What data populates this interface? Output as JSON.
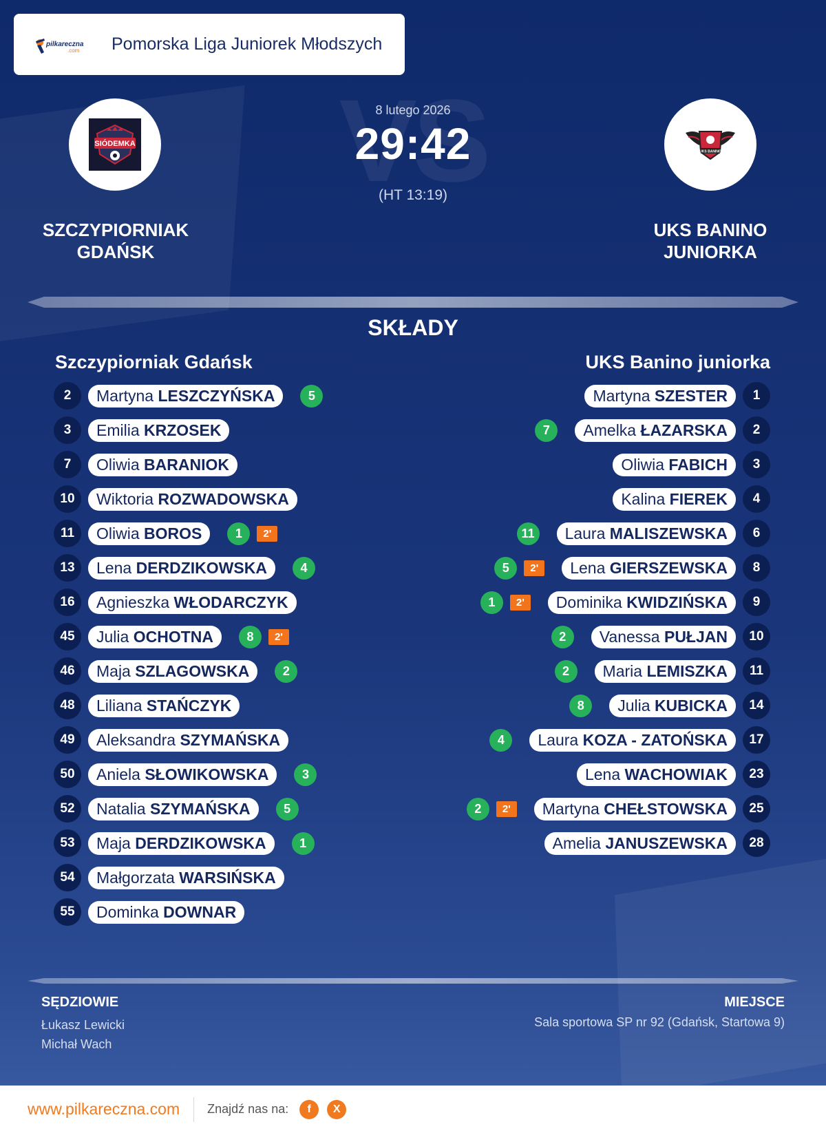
{
  "league": {
    "title": "Pomorska Liga Juniorek Młodszych",
    "logo_text": "pilkareczna",
    "logo_sub": ".com"
  },
  "match": {
    "date": "8 lutego 2026",
    "score": "29:42",
    "half_time": "(HT 13:19)",
    "watermark": "VS"
  },
  "home": {
    "name_line1": "SZCZYPIORNIAK",
    "name_line2": "GDAŃSK",
    "crest_text": "SIÓDEMKA",
    "header": "Szczypiorniak Gdańsk"
  },
  "away": {
    "name_line1": "UKS BANINO",
    "name_line2": "JUNIORKA",
    "crest_text": "UKS BANINO",
    "header": "UKS Banino juniorka"
  },
  "section_title": "SKŁADY",
  "home_players": [
    {
      "num": "2",
      "first": "Martyna",
      "last": "LESZCZYŃSKA",
      "goals": "5",
      "susp": ""
    },
    {
      "num": "3",
      "first": "Emilia",
      "last": "KRZOSEK",
      "goals": "",
      "susp": ""
    },
    {
      "num": "7",
      "first": "Oliwia",
      "last": "BARANIOK",
      "goals": "",
      "susp": ""
    },
    {
      "num": "10",
      "first": "Wiktoria",
      "last": "ROZWADOWSKA",
      "goals": "",
      "susp": ""
    },
    {
      "num": "11",
      "first": "Oliwia",
      "last": "BOROS",
      "goals": "1",
      "susp": "2'"
    },
    {
      "num": "13",
      "first": "Lena",
      "last": "DERDZIKOWSKA",
      "goals": "4",
      "susp": ""
    },
    {
      "num": "16",
      "first": "Agnieszka",
      "last": "WŁODARCZYK",
      "goals": "",
      "susp": ""
    },
    {
      "num": "45",
      "first": "Julia",
      "last": "OCHOTNA",
      "goals": "8",
      "susp": "2'"
    },
    {
      "num": "46",
      "first": "Maja",
      "last": "SZLAGOWSKA",
      "goals": "2",
      "susp": ""
    },
    {
      "num": "48",
      "first": "Liliana",
      "last": "STAŃCZYK",
      "goals": "",
      "susp": ""
    },
    {
      "num": "49",
      "first": "Aleksandra",
      "last": "SZYMAŃSKA",
      "goals": "",
      "susp": ""
    },
    {
      "num": "50",
      "first": "Aniela",
      "last": "SŁOWIKOWSKA",
      "goals": "3",
      "susp": ""
    },
    {
      "num": "52",
      "first": "Natalia",
      "last": "SZYMAŃSKA",
      "goals": "5",
      "susp": ""
    },
    {
      "num": "53",
      "first": "Maja",
      "last": "DERDZIKOWSKA",
      "goals": "1",
      "susp": ""
    },
    {
      "num": "54",
      "first": "Małgorzata",
      "last": "WARSIŃSKA",
      "goals": "",
      "susp": ""
    },
    {
      "num": "55",
      "first": "Dominka",
      "last": "DOWNAR",
      "goals": "",
      "susp": ""
    }
  ],
  "away_players": [
    {
      "num": "1",
      "first": "Martyna",
      "last": "SZESTER",
      "goals": "",
      "susp": ""
    },
    {
      "num": "2",
      "first": "Amelka",
      "last": "ŁAZARSKA",
      "goals": "7",
      "susp": ""
    },
    {
      "num": "3",
      "first": "Oliwia",
      "last": "FABICH",
      "goals": "",
      "susp": ""
    },
    {
      "num": "4",
      "first": "Kalina",
      "last": "FIEREK",
      "goals": "",
      "susp": ""
    },
    {
      "num": "6",
      "first": "Laura",
      "last": "MALISZEWSKA",
      "goals": "11",
      "susp": ""
    },
    {
      "num": "8",
      "first": "Lena",
      "last": "GIERSZEWSKA",
      "goals": "5",
      "susp": "2'"
    },
    {
      "num": "9",
      "first": "Dominika",
      "last": "KWIDZIŃSKA",
      "goals": "1",
      "susp": "2'"
    },
    {
      "num": "10",
      "first": "Vanessa",
      "last": "PUŁJAN",
      "goals": "2",
      "susp": ""
    },
    {
      "num": "11",
      "first": "Maria",
      "last": "LEMISZKA",
      "goals": "2",
      "susp": ""
    },
    {
      "num": "14",
      "first": "Julia",
      "last": "KUBICKA",
      "goals": "8",
      "susp": ""
    },
    {
      "num": "17",
      "first": "Laura",
      "last": "KOZA - ZATOŃSKA",
      "goals": "4",
      "susp": ""
    },
    {
      "num": "23",
      "first": "Lena",
      "last": "WACHOWIAK",
      "goals": "",
      "susp": ""
    },
    {
      "num": "25",
      "first": "Martyna",
      "last": "CHEŁSTOWSKA",
      "goals": "2",
      "susp": "2'"
    },
    {
      "num": "28",
      "first": "Amelia",
      "last": "JANUSZEWSKA",
      "goals": "",
      "susp": ""
    }
  ],
  "referees": {
    "title": "SĘDZIOWIE",
    "names": [
      "Łukasz Lewicki",
      "Michał Wach"
    ]
  },
  "venue": {
    "title": "MIEJSCE",
    "value": "Sala sportowa SP nr 92 (Gdańsk, Startowa 9)"
  },
  "footer": {
    "url": "www.pilkareczna.com",
    "find_us": "Znajdź nas na:",
    "social": [
      {
        "icon": "facebook-icon",
        "label": "f"
      },
      {
        "icon": "x-icon",
        "label": "X"
      }
    ]
  },
  "colors": {
    "bg_top": "#0f2a6a",
    "bg_bottom": "#3d5fa4",
    "accent": "#f07a1f",
    "goal": "#27b15a",
    "suspension": "#f2741d",
    "number_bg": "#0c1f52"
  }
}
